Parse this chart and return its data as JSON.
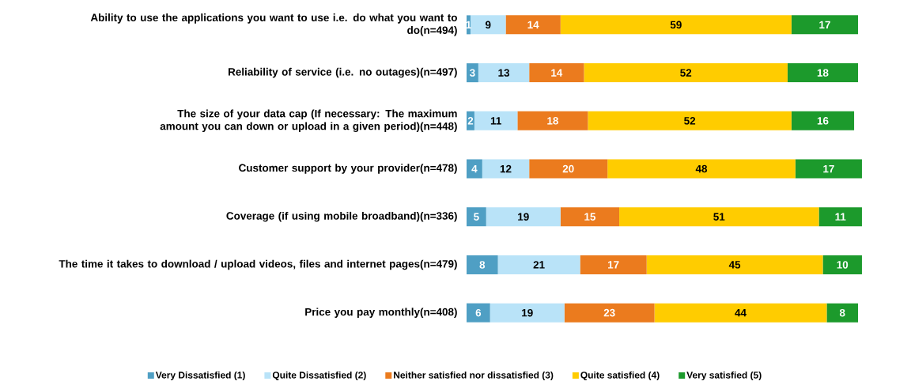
{
  "chart_data": {
    "type": "bar",
    "orientation": "horizontal",
    "stacked": true,
    "legend": "bottom",
    "categories": [
      "Ability to use the applications you want to use i.e. do what you want to do(n=494)",
      "Reliability of service  (i.e. no outages)(n=497)",
      "The size of your data cap (If necessary:  The maximum amount you can down or upload in a given period)(n=448)",
      "Customer support by your provider(n=478)",
      "Coverage (if using mobile broadband)(n=336)",
      "The time it takes to download / upload videos, files and internet pages(n=479)",
      "Price you pay monthly(n=408)"
    ],
    "series": [
      {
        "name": "Very Dissatisfied (1)",
        "color": "#4f9fc4",
        "values": [
          1,
          3,
          2,
          4,
          5,
          8,
          6
        ],
        "value_labels": [
          "1",
          "3",
          "2",
          "4",
          "5",
          "8",
          "6"
        ]
      },
      {
        "name": "Quite Dissatisfied (2)",
        "color": "#b9e3f8",
        "values": [
          9,
          13,
          11,
          12,
          19,
          21,
          19
        ],
        "value_labels": [
          "9",
          "13",
          "11",
          "12",
          "19",
          "21",
          "19"
        ]
      },
      {
        "name": "Neither satisfied nor dissatisfied (3)",
        "color": "#eb7b1e",
        "values": [
          14,
          14,
          18,
          20,
          15,
          17,
          23
        ],
        "value_labels": [
          "14",
          "14",
          "18",
          "20",
          "15",
          "17",
          "23"
        ]
      },
      {
        "name": "Quite satisfied (4)",
        "color": "#ffcc00",
        "values": [
          59,
          52,
          52,
          48,
          51,
          45,
          44
        ],
        "value_labels": [
          "59",
          "52",
          "52",
          "48",
          "51",
          "45",
          "44"
        ]
      },
      {
        "name": "Very satisfied (5)",
        "color": "#1c9a2c",
        "values": [
          17,
          18,
          16,
          17,
          11,
          10,
          8
        ],
        "value_labels": [
          "17",
          "18",
          "16",
          "17",
          "11",
          "10",
          "8"
        ]
      }
    ]
  }
}
